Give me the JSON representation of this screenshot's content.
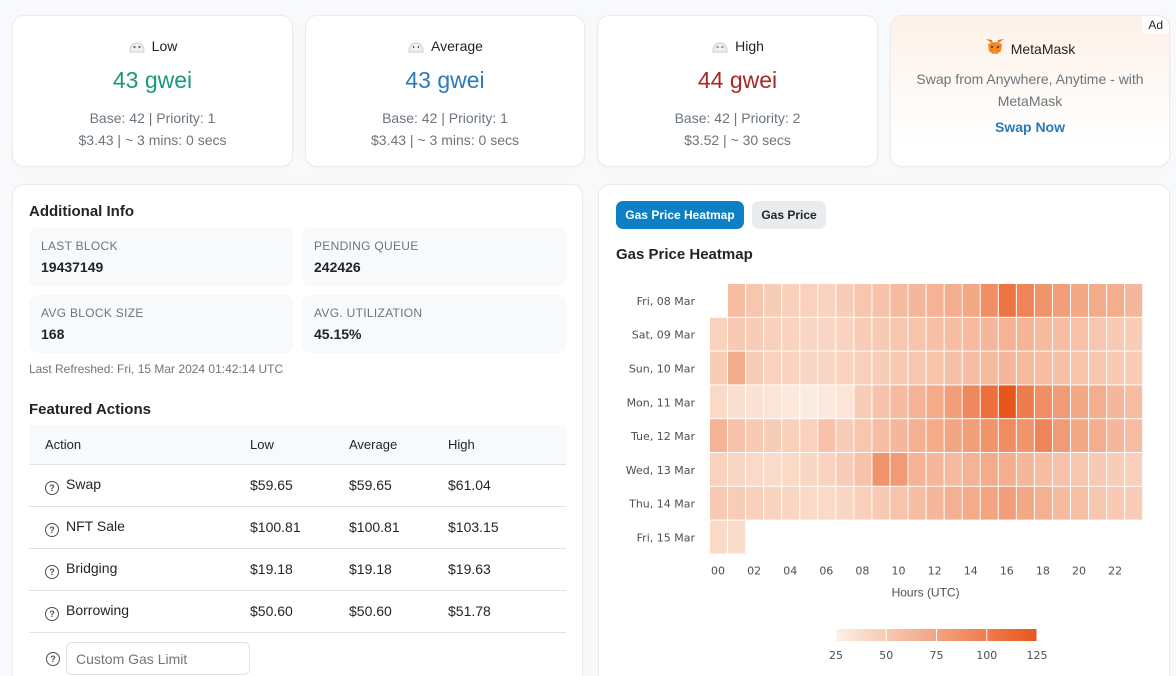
{
  "gas_cards": [
    {
      "label": "Low",
      "value": "43 gwei",
      "line1": "Base: 42 | Priority: 1",
      "line2": "$3.43 | ~ 3 mins: 0 secs"
    },
    {
      "label": "Average",
      "value": "43 gwei",
      "line1": "Base: 42 | Priority: 1",
      "line2": "$3.43 | ~ 3 mins: 0 secs"
    },
    {
      "label": "High",
      "value": "44 gwei",
      "line1": "Base: 42 | Priority: 2",
      "line2": "$3.52 | ~ 30 secs"
    }
  ],
  "ad": {
    "badge": "Ad",
    "title": "MetaMask",
    "text": "Swap from Anywhere, Anytime - with MetaMask",
    "link": "Swap Now"
  },
  "additional_info": {
    "title": "Additional Info",
    "items": [
      {
        "label": "LAST BLOCK",
        "value": "19437149"
      },
      {
        "label": "PENDING QUEUE",
        "value": "242426"
      },
      {
        "label": "AVG BLOCK SIZE",
        "value": "168"
      },
      {
        "label": "AVG. UTILIZATION",
        "value": "45.15%"
      }
    ],
    "refreshed": "Last Refreshed: Fri, 15 Mar 2024 01:42:14 UTC"
  },
  "featured_actions": {
    "title": "Featured Actions",
    "headers": [
      "Action",
      "Low",
      "Average",
      "High"
    ],
    "rows": [
      {
        "action": "Swap",
        "low": "$59.65",
        "average": "$59.65",
        "high": "$61.04"
      },
      {
        "action": "NFT Sale",
        "low": "$100.81",
        "average": "$100.81",
        "high": "$103.15"
      },
      {
        "action": "Bridging",
        "low": "$19.18",
        "average": "$19.18",
        "high": "$19.63"
      },
      {
        "action": "Borrowing",
        "low": "$50.60",
        "average": "$50.60",
        "high": "$51.78"
      }
    ],
    "custom_placeholder": "Custom Gas Limit"
  },
  "heatmap_panel": {
    "tabs": [
      "Gas Price Heatmap",
      "Gas Price"
    ],
    "active_tab": 0
  },
  "colors": {
    "scale_low": "#fdeee3",
    "scale_high": "#e8561a",
    "accent": "#0d7fc4"
  },
  "chart_data": {
    "type": "heatmap",
    "title": "Gas Price Heatmap",
    "xlabel": "Hours (UTC)",
    "ylabel": "",
    "x_tick_labels": [
      "00",
      "02",
      "04",
      "06",
      "08",
      "10",
      "12",
      "14",
      "16",
      "18",
      "20",
      "22"
    ],
    "days": [
      "Fri, 08 Mar",
      "Sat, 09 Mar",
      "Sun, 10 Mar",
      "Mon, 11 Mar",
      "Tue, 12 Mar",
      "Wed, 13 Mar",
      "Thu, 14 Mar",
      "Fri, 15 Mar"
    ],
    "hours": [
      0,
      1,
      2,
      3,
      4,
      5,
      6,
      7,
      8,
      9,
      10,
      11,
      12,
      13,
      14,
      15,
      16,
      17,
      18,
      19,
      20,
      21,
      22,
      23
    ],
    "values": [
      [
        null,
        58,
        52,
        48,
        46,
        45,
        44,
        48,
        52,
        55,
        60,
        62,
        65,
        68,
        72,
        88,
        105,
        95,
        85,
        78,
        72,
        70,
        68,
        62
      ],
      [
        45,
        50,
        48,
        46,
        44,
        42,
        42,
        44,
        48,
        50,
        52,
        54,
        56,
        58,
        60,
        62,
        65,
        64,
        60,
        58,
        55,
        52,
        50,
        48
      ],
      [
        48,
        70,
        48,
        45,
        44,
        42,
        42,
        44,
        46,
        48,
        50,
        52,
        54,
        56,
        58,
        60,
        62,
        60,
        58,
        56,
        54,
        52,
        50,
        48
      ],
      [
        40,
        36,
        34,
        32,
        30,
        28,
        30,
        32,
        48,
        55,
        60,
        65,
        70,
        78,
        92,
        108,
        125,
        100,
        88,
        80,
        72,
        68,
        62,
        58
      ],
      [
        65,
        55,
        50,
        48,
        46,
        45,
        55,
        48,
        52,
        58,
        62,
        66,
        70,
        74,
        78,
        85,
        90,
        85,
        95,
        80,
        72,
        68,
        62,
        58
      ],
      [
        45,
        42,
        40,
        38,
        40,
        42,
        44,
        48,
        55,
        85,
        80,
        65,
        62,
        60,
        65,
        70,
        68,
        62,
        58,
        55,
        52,
        50,
        48,
        46
      ],
      [
        50,
        48,
        46,
        44,
        42,
        40,
        40,
        42,
        46,
        50,
        54,
        58,
        62,
        66,
        70,
        74,
        78,
        72,
        66,
        60,
        56,
        52,
        50,
        48
      ],
      [
        40,
        38,
        null,
        null,
        null,
        null,
        null,
        null,
        null,
        null,
        null,
        null,
        null,
        null,
        null,
        null,
        null,
        null,
        null,
        null,
        null,
        null,
        null,
        null
      ]
    ],
    "color_scale": {
      "min": 25,
      "max": 125,
      "ticks": [
        25,
        50,
        75,
        100,
        125
      ]
    }
  }
}
